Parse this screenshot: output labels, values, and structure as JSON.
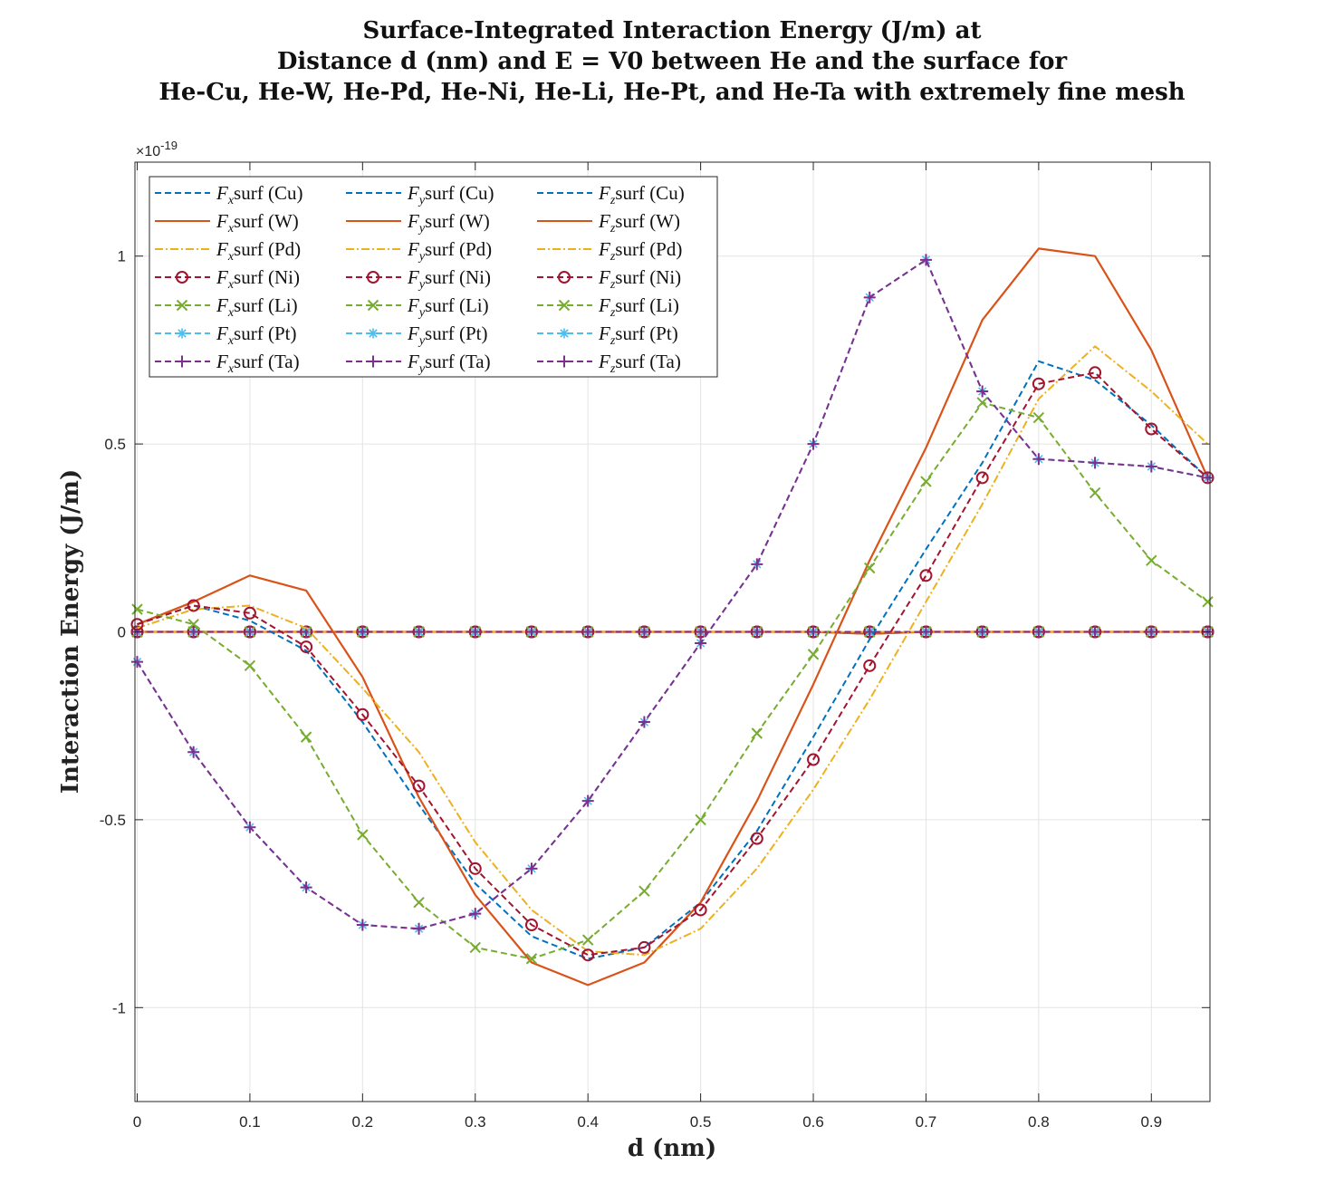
{
  "title_lines": [
    "Surface-Integrated Interaction Energy (J/m) at",
    "Distance d (nm) and E = V0 between He and the surface for",
    "He-Cu, He-W, He-Pd, He-Ni, He-Li, He-Pt, and He-Ta with extremely fine mesh"
  ],
  "chart_data": {
    "type": "line",
    "title": "Surface-Integrated Interaction Energy (J/m) at Distance d (nm) and E = V0 between He and the surface for He-Cu, He-W, He-Pd, He-Ni, He-Li, He-Pt, and He-Ta with extremely fine mesh",
    "xlabel": "d (nm)",
    "ylabel": "Interaction Energy (J/m)",
    "y_exponent": "×10-19",
    "xlim": [
      -0.002,
      0.952
    ],
    "ylim": [
      -1.25,
      1.25
    ],
    "grid": true,
    "legend_position": "top-left",
    "x_ticks": [
      0,
      0.1,
      0.2,
      0.3,
      0.4,
      0.5,
      0.6,
      0.7,
      0.8,
      0.9
    ],
    "x_tick_labels": [
      "0",
      "0.1",
      "0.2",
      "0.3",
      "0.4",
      "0.5",
      "0.6",
      "0.7",
      "0.8",
      "0.9"
    ],
    "y_ticks": [
      -1,
      -0.5,
      0,
      0.5,
      1
    ],
    "y_tick_labels": [
      "-1",
      "-0.5",
      "0",
      "0.5",
      "1"
    ],
    "x": [
      0,
      0.05,
      0.1,
      0.15,
      0.2,
      0.25,
      0.3,
      0.35,
      0.4,
      0.45,
      0.5,
      0.55,
      0.6,
      0.65,
      0.7,
      0.75,
      0.8,
      0.85,
      0.9,
      0.95
    ],
    "series": [
      {
        "name": "Fxsurf (Cu)",
        "comp": "x",
        "metal": "Cu",
        "color": "#0072BD",
        "dash": "dashed",
        "marker": "none",
        "values": [
          0.02,
          0.07,
          0.03,
          -0.05,
          -0.24,
          -0.46,
          -0.67,
          -0.81,
          -0.87,
          -0.84,
          -0.72,
          -0.53,
          -0.28,
          -0.02,
          0.22,
          0.45,
          0.72,
          0.67,
          0.55,
          0.41
        ]
      },
      {
        "name": "Fysurf (Cu)",
        "comp": "y",
        "metal": "Cu",
        "color": "#0072BD",
        "dash": "dashed",
        "marker": "none",
        "values": [
          0,
          0,
          0,
          0,
          0,
          0,
          0,
          0,
          0,
          0,
          0,
          0,
          0,
          0,
          0,
          0,
          0,
          0,
          0,
          0
        ]
      },
      {
        "name": "Fzsurf (Cu)",
        "comp": "z",
        "metal": "Cu",
        "color": "#0072BD",
        "dash": "dashed",
        "marker": "none",
        "values": [
          0,
          0,
          0,
          0,
          0,
          0,
          0,
          0,
          0,
          0,
          0,
          0,
          0,
          0,
          0,
          0,
          0,
          0,
          0,
          0
        ]
      },
      {
        "name": "Fxsurf (W)",
        "comp": "x",
        "metal": "W",
        "color": "#D95319",
        "dash": "solid",
        "marker": "none",
        "values": [
          0.02,
          0.08,
          0.15,
          0.11,
          -0.12,
          -0.44,
          -0.7,
          -0.88,
          -0.94,
          -0.88,
          -0.72,
          -0.45,
          -0.14,
          0.19,
          0.49,
          0.83,
          1.02,
          1.0,
          0.75,
          0.41
        ]
      },
      {
        "name": "Fysurf (W)",
        "comp": "y",
        "metal": "W",
        "color": "#D95319",
        "dash": "solid",
        "marker": "none",
        "values": [
          0,
          0,
          0,
          0,
          0,
          0,
          0,
          0,
          0,
          0,
          0,
          0,
          0,
          -0.005,
          0,
          0,
          0,
          0,
          0,
          0
        ]
      },
      {
        "name": "Fzsurf (W)",
        "comp": "z",
        "metal": "W",
        "color": "#D95319",
        "dash": "solid",
        "marker": "none",
        "values": [
          0,
          0,
          0,
          0,
          0,
          0,
          0,
          0,
          0,
          0,
          0,
          0,
          0,
          -0.005,
          0,
          0,
          0,
          0,
          0,
          0
        ]
      },
      {
        "name": "Fxsurf (Pd)",
        "comp": "x",
        "metal": "Pd",
        "color": "#EDB120",
        "dash": "dashdot",
        "marker": "none",
        "values": [
          0.01,
          0.06,
          0.07,
          0.01,
          -0.15,
          -0.32,
          -0.56,
          -0.74,
          -0.85,
          -0.86,
          -0.79,
          -0.63,
          -0.42,
          -0.18,
          0.08,
          0.34,
          0.62,
          0.76,
          0.64,
          0.5
        ]
      },
      {
        "name": "Fysurf (Pd)",
        "comp": "y",
        "metal": "Pd",
        "color": "#EDB120",
        "dash": "dashdot",
        "marker": "none",
        "values": [
          0,
          0,
          0,
          0,
          0,
          0,
          0,
          0,
          0,
          0,
          0,
          0,
          0,
          0,
          0,
          0,
          0,
          0,
          0,
          0
        ]
      },
      {
        "name": "Fzsurf (Pd)",
        "comp": "z",
        "metal": "Pd",
        "color": "#EDB120",
        "dash": "dashdot",
        "marker": "none",
        "values": [
          0,
          0,
          0,
          0,
          0,
          0,
          0,
          0,
          0,
          0,
          0,
          0,
          0,
          0,
          0,
          0,
          0,
          0,
          0,
          0
        ]
      },
      {
        "name": "Fxsurf (Ni)",
        "comp": "x",
        "metal": "Ni",
        "color": "#A2142F",
        "dash": "dashed",
        "marker": "circle",
        "values": [
          0.02,
          0.07,
          0.05,
          -0.04,
          -0.22,
          -0.41,
          -0.63,
          -0.78,
          -0.86,
          -0.84,
          -0.74,
          -0.55,
          -0.34,
          -0.09,
          0.15,
          0.41,
          0.66,
          0.69,
          0.54,
          0.41
        ]
      },
      {
        "name": "Fysurf (Ni)",
        "comp": "y",
        "metal": "Ni",
        "color": "#A2142F",
        "dash": "dashed",
        "marker": "circle",
        "values": [
          0,
          0,
          0,
          0,
          0,
          0,
          0,
          0,
          0,
          0,
          0,
          0,
          0,
          0,
          0,
          0,
          0,
          0,
          0,
          0
        ]
      },
      {
        "name": "Fzsurf (Ni)",
        "comp": "z",
        "metal": "Ni",
        "color": "#A2142F",
        "dash": "dashed",
        "marker": "circle",
        "values": [
          0,
          0,
          0,
          0,
          0,
          0,
          0,
          0,
          0,
          0,
          0,
          0,
          0,
          0,
          0,
          0,
          0,
          0,
          0,
          0
        ]
      },
      {
        "name": "Fxsurf (Li)",
        "comp": "x",
        "metal": "Li",
        "color": "#77AC30",
        "dash": "dashed",
        "marker": "x",
        "values": [
          0.06,
          0.02,
          -0.09,
          -0.28,
          -0.54,
          -0.72,
          -0.84,
          -0.87,
          -0.82,
          -0.69,
          -0.5,
          -0.27,
          -0.06,
          0.17,
          0.4,
          0.61,
          0.57,
          0.37,
          0.19,
          0.08
        ]
      },
      {
        "name": "Fysurf (Li)",
        "comp": "y",
        "metal": "Li",
        "color": "#77AC30",
        "dash": "dashed",
        "marker": "x",
        "values": [
          0,
          0,
          0,
          0,
          0,
          0,
          0,
          0,
          0,
          0,
          0,
          0,
          0,
          0,
          0,
          0,
          0,
          0,
          0,
          0
        ]
      },
      {
        "name": "Fzsurf (Li)",
        "comp": "z",
        "metal": "Li",
        "color": "#77AC30",
        "dash": "dashed",
        "marker": "x",
        "values": [
          0,
          0,
          0,
          0,
          0,
          0,
          0,
          0,
          0,
          0,
          0,
          0,
          0,
          0,
          0,
          0,
          0,
          0,
          0,
          0
        ]
      },
      {
        "name": "Fxsurf (Pt)",
        "comp": "x",
        "metal": "Pt",
        "color": "#4DBEEE",
        "dash": "dashed",
        "marker": "asterisk",
        "values": [
          -0.08,
          -0.32,
          -0.52,
          -0.68,
          -0.78,
          -0.79,
          -0.75,
          -0.63,
          -0.45,
          -0.24,
          -0.03,
          0.18,
          0.5,
          0.89,
          0.99,
          0.64,
          0.46,
          0.45,
          0.44,
          0.41
        ]
      },
      {
        "name": "Fysurf (Pt)",
        "comp": "y",
        "metal": "Pt",
        "color": "#4DBEEE",
        "dash": "dashed",
        "marker": "asterisk",
        "values": [
          0,
          0,
          0,
          0,
          0,
          0,
          0,
          0,
          0,
          0,
          0,
          0,
          0,
          0,
          0,
          0,
          0,
          0,
          0,
          0
        ]
      },
      {
        "name": "Fzsurf (Pt)",
        "comp": "z",
        "metal": "Pt",
        "color": "#4DBEEE",
        "dash": "dashed",
        "marker": "asterisk",
        "values": [
          0,
          0,
          0,
          0,
          0,
          0,
          0,
          0,
          0,
          0,
          0,
          0,
          0,
          0,
          0,
          0,
          0,
          0,
          0,
          0
        ]
      },
      {
        "name": "Fxsurf (Ta)",
        "comp": "x",
        "metal": "Ta",
        "color": "#7E2F8E",
        "dash": "dashed",
        "marker": "plus",
        "values": [
          -0.08,
          -0.32,
          -0.52,
          -0.68,
          -0.78,
          -0.79,
          -0.75,
          -0.63,
          -0.45,
          -0.24,
          -0.03,
          0.18,
          0.5,
          0.89,
          0.99,
          0.64,
          0.46,
          0.45,
          0.44,
          0.41
        ]
      },
      {
        "name": "Fysurf (Ta)",
        "comp": "y",
        "metal": "Ta",
        "color": "#7E2F8E",
        "dash": "dashed",
        "marker": "plus",
        "values": [
          0,
          0,
          0,
          0,
          0,
          0,
          0,
          0,
          0,
          0,
          0,
          0,
          0,
          0,
          0,
          0,
          0,
          0,
          0,
          0
        ]
      },
      {
        "name": "Fzsurf (Ta)",
        "comp": "z",
        "metal": "Ta",
        "color": "#7E2F8E",
        "dash": "dashed",
        "marker": "plus",
        "values": [
          0,
          0,
          0,
          0,
          0,
          0,
          0,
          0,
          0,
          0,
          0,
          0,
          0,
          0,
          0,
          0,
          0,
          0,
          0,
          0
        ]
      }
    ]
  }
}
